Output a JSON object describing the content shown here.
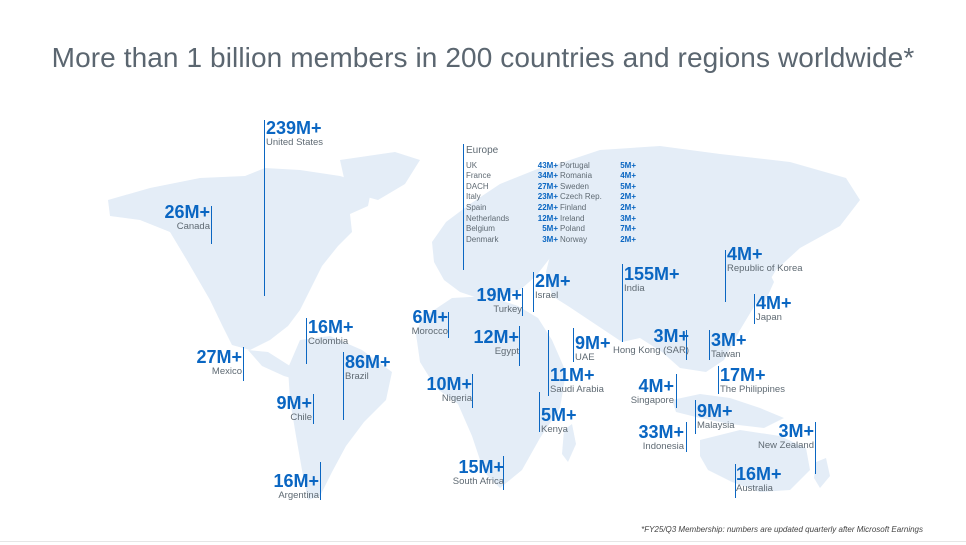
{
  "title": "More than 1 billion members in 200 countries and regions worldwide*",
  "footnote": "*FY25/Q3 Membership: numbers are updated quarterly after Microsoft Earnings",
  "colors": {
    "accent": "#0a66c2",
    "map": "#e4edf7",
    "title": "#5b6670"
  },
  "europe": {
    "heading": "Europe",
    "col1": [
      {
        "name": "UK",
        "value": "43M+"
      },
      {
        "name": "France",
        "value": "34M+"
      },
      {
        "name": "DACH",
        "value": "27M+"
      },
      {
        "name": "Italy",
        "value": "23M+"
      },
      {
        "name": "Spain",
        "value": "22M+"
      },
      {
        "name": "Netherlands",
        "value": "12M+"
      },
      {
        "name": "Belgium",
        "value": "5M+"
      },
      {
        "name": "Denmark",
        "value": "3M+"
      }
    ],
    "col2": [
      {
        "name": "Portugal",
        "value": "5M+"
      },
      {
        "name": "Romania",
        "value": "4M+"
      },
      {
        "name": "Sweden",
        "value": "5M+"
      },
      {
        "name": "Czech Rep.",
        "value": "2M+"
      },
      {
        "name": "Finland",
        "value": "2M+"
      },
      {
        "name": "Ireland",
        "value": "3M+"
      },
      {
        "name": "Poland",
        "value": "7M+"
      },
      {
        "name": "Norway",
        "value": "2M+"
      }
    ]
  },
  "regions": {
    "us": {
      "value": "239M+",
      "name": "United States"
    },
    "canada": {
      "value": "26M+",
      "name": "Canada"
    },
    "mexico": {
      "value": "27M+",
      "name": "Mexico"
    },
    "colombia": {
      "value": "16M+",
      "name": "Colombia"
    },
    "brazil": {
      "value": "86M+",
      "name": "Brazil"
    },
    "chile": {
      "value": "9M+",
      "name": "Chile"
    },
    "argentina": {
      "value": "16M+",
      "name": "Argentina"
    },
    "morocco": {
      "value": "6M+",
      "name": "Morocco"
    },
    "turkey": {
      "value": "19M+",
      "name": "Turkey"
    },
    "israel": {
      "value": "2M+",
      "name": "Israel"
    },
    "egypt": {
      "value": "12M+",
      "name": "Egypt"
    },
    "nigeria": {
      "value": "10M+",
      "name": "Nigeria"
    },
    "uae": {
      "value": "9M+",
      "name": "UAE"
    },
    "saudi": {
      "value": "11M+",
      "name": "Saudi Arabia"
    },
    "kenya": {
      "value": "5M+",
      "name": "Kenya"
    },
    "southafrica": {
      "value": "15M+",
      "name": "South Africa"
    },
    "india": {
      "value": "155M+",
      "name": "India"
    },
    "korea": {
      "value": "4M+",
      "name": "Republic of Korea"
    },
    "japan": {
      "value": "4M+",
      "name": "Japan"
    },
    "hongkong": {
      "value": "3M+",
      "name": "Hong Kong (SAR)"
    },
    "taiwan": {
      "value": "3M+",
      "name": "Taiwan"
    },
    "philippines": {
      "value": "17M+",
      "name": "The Philippines"
    },
    "singapore": {
      "value": "4M+",
      "name": "Singapore"
    },
    "malaysia": {
      "value": "9M+",
      "name": "Malaysia"
    },
    "indonesia": {
      "value": "33M+",
      "name": "Indonesia"
    },
    "newzealand": {
      "value": "3M+",
      "name": "New Zealand"
    },
    "australia": {
      "value": "16M+",
      "name": "Australia"
    }
  }
}
